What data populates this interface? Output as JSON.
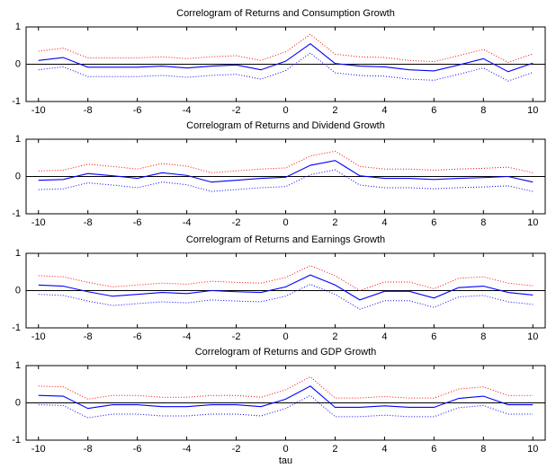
{
  "chart_data": [
    {
      "type": "line",
      "title": "Correlogram of Returns and Consumption Growth",
      "x": [
        -10,
        -9,
        -8,
        -7,
        -6,
        -5,
        -4,
        -3,
        -2,
        -1,
        0,
        1,
        2,
        3,
        4,
        5,
        6,
        7,
        8,
        9,
        10
      ],
      "series": [
        {
          "color": "#0000ff",
          "dotted": false,
          "values": [
            0.1,
            0.18,
            -0.08,
            -0.08,
            -0.08,
            -0.05,
            -0.1,
            -0.05,
            -0.02,
            -0.15,
            0.08,
            0.55,
            0.02,
            -0.05,
            -0.07,
            -0.15,
            -0.18,
            -0.02,
            0.15,
            -0.2,
            0.03
          ]
        },
        {
          "color": "#ff0000",
          "dotted": true,
          "values": [
            0.35,
            0.43,
            0.17,
            0.17,
            0.17,
            0.2,
            0.15,
            0.2,
            0.23,
            0.1,
            0.33,
            0.8,
            0.27,
            0.2,
            0.18,
            0.1,
            0.07,
            0.23,
            0.4,
            0.05,
            0.28
          ]
        },
        {
          "color": "#0000ff",
          "dotted": true,
          "values": [
            -0.15,
            -0.07,
            -0.33,
            -0.33,
            -0.33,
            -0.3,
            -0.35,
            -0.3,
            -0.27,
            -0.4,
            -0.17,
            0.3,
            -0.23,
            -0.3,
            -0.32,
            -0.4,
            -0.43,
            -0.27,
            -0.1,
            -0.45,
            -0.22
          ]
        }
      ],
      "reference_line": 0,
      "xlim": [
        -10.5,
        10.5
      ],
      "ylim": [
        -1,
        1
      ],
      "xticks": [
        -10,
        -8,
        -6,
        -4,
        -2,
        0,
        2,
        4,
        6,
        8,
        10
      ],
      "yticks": [
        -1,
        0,
        1
      ]
    },
    {
      "type": "line",
      "title": "Correlogram of Returns and Dividend Growth",
      "x": [
        -10,
        -9,
        -8,
        -7,
        -6,
        -5,
        -4,
        -3,
        -2,
        -1,
        0,
        1,
        2,
        3,
        4,
        5,
        6,
        7,
        8,
        9,
        10
      ],
      "series": [
        {
          "color": "#0000ff",
          "dotted": false,
          "values": [
            -0.1,
            -0.08,
            0.08,
            0.02,
            -0.05,
            0.1,
            0.03,
            -0.15,
            -0.1,
            -0.05,
            -0.02,
            0.3,
            0.43,
            0.02,
            -0.05,
            -0.05,
            -0.08,
            -0.05,
            -0.03,
            0.0,
            -0.15
          ]
        },
        {
          "color": "#ff0000",
          "dotted": true,
          "values": [
            0.15,
            0.17,
            0.33,
            0.27,
            0.2,
            0.35,
            0.28,
            0.1,
            0.15,
            0.2,
            0.23,
            0.55,
            0.68,
            0.27,
            0.2,
            0.2,
            0.17,
            0.2,
            0.22,
            0.25,
            0.1
          ]
        },
        {
          "color": "#0000ff",
          "dotted": true,
          "values": [
            -0.35,
            -0.33,
            -0.17,
            -0.23,
            -0.3,
            -0.15,
            -0.22,
            -0.4,
            -0.35,
            -0.3,
            -0.27,
            0.05,
            0.18,
            -0.23,
            -0.3,
            -0.3,
            -0.33,
            -0.3,
            -0.28,
            -0.25,
            -0.4
          ]
        }
      ],
      "reference_line": 0,
      "xlim": [
        -10.5,
        10.5
      ],
      "ylim": [
        -1,
        1
      ],
      "xticks": [
        -10,
        -8,
        -6,
        -4,
        -2,
        0,
        2,
        4,
        6,
        8,
        10
      ],
      "yticks": [
        -1,
        0,
        1
      ]
    },
    {
      "type": "line",
      "title": "Correlogram of Returns and Earnings Growth",
      "x": [
        -10,
        -9,
        -8,
        -7,
        -6,
        -5,
        -4,
        -3,
        -2,
        -1,
        0,
        1,
        2,
        3,
        4,
        5,
        6,
        7,
        8,
        9,
        10
      ],
      "series": [
        {
          "color": "#0000ff",
          "dotted": false,
          "values": [
            0.15,
            0.12,
            -0.03,
            -0.15,
            -0.1,
            -0.05,
            -0.08,
            0.0,
            -0.03,
            -0.05,
            0.1,
            0.42,
            0.15,
            -0.25,
            -0.02,
            -0.02,
            -0.2,
            0.08,
            0.12,
            -0.05,
            -0.12
          ]
        },
        {
          "color": "#ff0000",
          "dotted": true,
          "values": [
            0.4,
            0.37,
            0.22,
            0.1,
            0.15,
            0.2,
            0.17,
            0.25,
            0.22,
            0.2,
            0.35,
            0.67,
            0.4,
            0.0,
            0.23,
            0.23,
            0.05,
            0.33,
            0.37,
            0.2,
            0.13
          ]
        },
        {
          "color": "#0000ff",
          "dotted": true,
          "values": [
            -0.1,
            -0.13,
            -0.28,
            -0.4,
            -0.35,
            -0.3,
            -0.33,
            -0.25,
            -0.28,
            -0.3,
            -0.15,
            0.17,
            -0.1,
            -0.5,
            -0.27,
            -0.27,
            -0.45,
            -0.17,
            -0.13,
            -0.3,
            -0.37
          ]
        }
      ],
      "reference_line": 0,
      "xlim": [
        -10.5,
        10.5
      ],
      "ylim": [
        -1,
        1
      ],
      "xticks": [
        -10,
        -8,
        -6,
        -4,
        -2,
        0,
        2,
        4,
        6,
        8,
        10
      ],
      "yticks": [
        -1,
        0,
        1
      ]
    },
    {
      "type": "line",
      "title": "Correlogram of Returns and GDP Growth",
      "xlabel": "tau",
      "x": [
        -10,
        -9,
        -8,
        -7,
        -6,
        -5,
        -4,
        -3,
        -2,
        -1,
        0,
        1,
        2,
        3,
        4,
        5,
        6,
        7,
        8,
        9,
        10
      ],
      "series": [
        {
          "color": "#0000ff",
          "dotted": false,
          "values": [
            0.2,
            0.18,
            -0.15,
            -0.05,
            -0.05,
            -0.1,
            -0.1,
            -0.05,
            -0.05,
            -0.1,
            0.1,
            0.45,
            -0.12,
            -0.12,
            -0.08,
            -0.12,
            -0.12,
            0.12,
            0.18,
            -0.05,
            -0.05
          ]
        },
        {
          "color": "#ff0000",
          "dotted": true,
          "values": [
            0.45,
            0.43,
            0.1,
            0.2,
            0.2,
            0.15,
            0.15,
            0.2,
            0.2,
            0.15,
            0.35,
            0.7,
            0.13,
            0.13,
            0.17,
            0.13,
            0.13,
            0.37,
            0.43,
            0.2,
            0.2
          ]
        },
        {
          "color": "#0000ff",
          "dotted": true,
          "values": [
            -0.05,
            -0.07,
            -0.4,
            -0.3,
            -0.3,
            -0.35,
            -0.35,
            -0.3,
            -0.3,
            -0.35,
            -0.15,
            0.2,
            -0.37,
            -0.37,
            -0.33,
            -0.37,
            -0.37,
            -0.13,
            -0.07,
            -0.3,
            -0.3
          ]
        }
      ],
      "reference_line": 0,
      "xlim": [
        -10.5,
        10.5
      ],
      "ylim": [
        -1,
        1
      ],
      "xticks": [
        -10,
        -8,
        -6,
        -4,
        -2,
        0,
        2,
        4,
        6,
        8,
        10
      ],
      "yticks": [
        -1,
        0,
        1
      ]
    }
  ]
}
